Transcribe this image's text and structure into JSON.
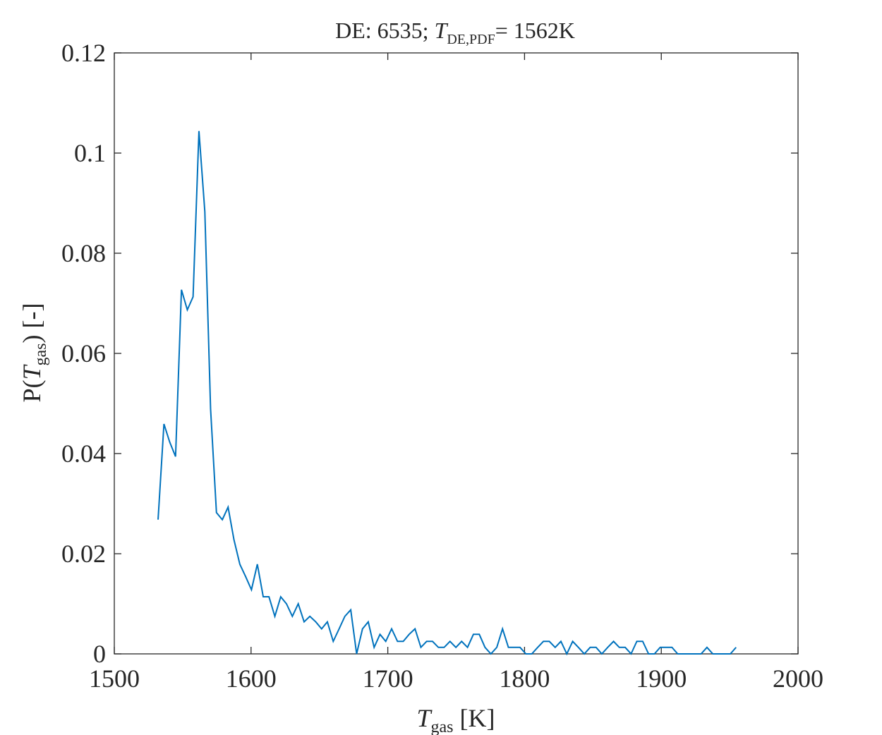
{
  "chart_data": {
    "type": "line",
    "title": [
      "DE: 6535; ",
      "T",
      "DE,PDF",
      "= 1562K"
    ],
    "x_label": [
      "T",
      "gas",
      " [K]"
    ],
    "y_label": [
      "P(",
      "T",
      "gas",
      ") [-]"
    ],
    "color": "#0072bd",
    "x": [
      1532.0,
      1536.3,
      1540.5,
      1544.8,
      1549.1,
      1553.4,
      1557.6,
      1561.9,
      1566.2,
      1570.4,
      1574.7,
      1579.0,
      1583.2,
      1587.5,
      1591.8,
      1596.1,
      1600.3,
      1604.6,
      1608.9,
      1613.1,
      1617.4,
      1621.7,
      1625.9,
      1630.2,
      1634.5,
      1638.8,
      1643.0,
      1647.3,
      1651.6,
      1655.8,
      1660.1,
      1664.4,
      1668.6,
      1672.9,
      1677.2,
      1681.5,
      1685.7,
      1690.0,
      1694.3,
      1698.5,
      1702.8,
      1707.1,
      1711.3,
      1715.6,
      1719.9,
      1724.2,
      1728.4,
      1732.7,
      1737.0,
      1741.2,
      1745.5,
      1749.8,
      1754.0,
      1758.3,
      1762.6,
      1766.9,
      1771.1,
      1775.4,
      1779.7,
      1783.9,
      1788.2,
      1792.5,
      1796.7,
      1801.0,
      1805.3,
      1809.6,
      1813.8,
      1818.1,
      1822.4,
      1826.6,
      1830.9,
      1835.2,
      1839.4,
      1843.7,
      1848.0,
      1852.3,
      1856.5,
      1860.8,
      1865.1,
      1869.3,
      1873.6,
      1877.9,
      1882.1,
      1886.4,
      1890.7,
      1895.0,
      1899.2,
      1903.5,
      1907.8,
      1912.0,
      1916.3,
      1920.6,
      1924.8,
      1929.1,
      1933.4,
      1937.7,
      1941.9,
      1946.2,
      1950.5,
      1954.7
    ],
    "values": [
      0.0268,
      0.0459,
      0.0423,
      0.0394,
      0.0727,
      0.0687,
      0.0713,
      0.1044,
      0.0883,
      0.0489,
      0.0282,
      0.0268,
      0.0293,
      0.0228,
      0.0179,
      0.0154,
      0.0128,
      0.0179,
      0.0114,
      0.0114,
      0.0075,
      0.0114,
      0.01,
      0.0075,
      0.01,
      0.0064,
      0.0075,
      0.0064,
      0.005,
      0.0064,
      0.0025,
      0.005,
      0.0075,
      0.0088,
      0,
      0.005,
      0.0064,
      0.0013,
      0.0039,
      0.0025,
      0.005,
      0.0025,
      0.0025,
      0.0039,
      0.005,
      0.0013,
      0.0025,
      0.0025,
      0.0013,
      0.0013,
      0.0025,
      0.0013,
      0.0025,
      0.0013,
      0.0039,
      0.0039,
      0.0013,
      0,
      0.0013,
      0.005,
      0.0013,
      0.0013,
      0.0013,
      0,
      0,
      0.0013,
      0.0025,
      0.0025,
      0.0013,
      0.0025,
      0,
      0.0025,
      0.0013,
      0,
      0.0013,
      0.0013,
      0,
      0.0013,
      0.0025,
      0.0013,
      0.0013,
      0,
      0.0025,
      0.0025,
      0,
      0,
      0.0013,
      0.0013,
      0.0013,
      0,
      0,
      0,
      0,
      0,
      0.0013,
      0,
      0,
      0,
      0,
      0.0013
    ],
    "xlim": [
      1500,
      2000
    ],
    "xticks": [
      1500,
      1600,
      1700,
      1800,
      1900,
      2000
    ],
    "ylim": [
      0,
      0.12
    ],
    "yticks": [
      0,
      0.02,
      0.04,
      0.06,
      0.08,
      0.1,
      0.12
    ]
  }
}
